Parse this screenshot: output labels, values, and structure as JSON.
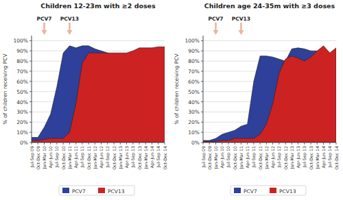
{
  "chart_data": [
    {
      "type": "area",
      "title": "Children 12-23m with ≥2 doses",
      "categories": [
        "Jul-Sep 09",
        "Oct-Dec 09",
        "Jan-Mar 10",
        "Apr-Jun 10",
        "Jul-Sep 10",
        "Oct-Dec 10",
        "Jan-Mar 11",
        "Apr-Jun 11",
        "Jul-Sep 11",
        "Oct-Dec 11",
        "Jan-Mar 12",
        "Apr-Jun 12",
        "Jul-Sep 12",
        "Oct-Dec 12",
        "Jan-Mar 13",
        "Apr-Jun 13",
        "Jul-Sep 13",
        "Oct-Dec 13",
        "Jan-Mar 14",
        "Apr-Jun 14",
        "Jul-Sep 14",
        "Oct-Dec 14"
      ],
      "series": [
        {
          "name": "PCV7",
          "color": "#2e4099",
          "values": [
            5,
            5,
            15,
            28,
            55,
            88,
            95,
            93,
            95,
            95,
            92,
            90,
            88,
            86,
            84,
            82,
            82,
            82,
            82,
            82,
            82,
            82
          ]
        },
        {
          "name": "PCV13",
          "color": "#cc2222",
          "values": [
            2,
            2,
            3,
            4,
            4,
            4,
            10,
            38,
            78,
            88,
            88,
            88,
            88,
            88,
            88,
            88,
            90,
            93,
            93,
            93,
            94,
            94
          ]
        }
      ],
      "y_label": "% of children receiving PCV",
      "ylim": [
        0,
        105
      ],
      "yticks": [
        {
          "value": 0,
          "label": "0%"
        },
        {
          "value": 10,
          "label": "10%"
        },
        {
          "value": 20,
          "label": "20%"
        },
        {
          "value": 30,
          "label": "30%"
        },
        {
          "value": 40,
          "label": "40%"
        },
        {
          "value": 50,
          "label": "50%"
        },
        {
          "value": 60,
          "label": "60%"
        },
        {
          "value": 70,
          "label": "70%"
        },
        {
          "value": 80,
          "label": "80%"
        },
        {
          "value": 90,
          "label": "90%"
        },
        {
          "value": 100,
          "label": "100%"
        }
      ],
      "annotations": [
        {
          "text": "PCV7",
          "x": "Jan-Mar 10",
          "color": "#e8b4a0"
        },
        {
          "text": "PCV13",
          "x": "Jan-Mar 11",
          "color": "#e8b4a0"
        }
      ],
      "grid": true,
      "legend": "bottom"
    },
    {
      "type": "area",
      "title": "Children age 24-35m with ≥3 doses",
      "categories": [
        "Jul-Sep 09",
        "Oct-Dec 09",
        "Jan-Mar 10",
        "Apr-Jun 10",
        "Jul-Sep 10",
        "Oct-Dec 10",
        "Jan-Mar 11",
        "Apr-Jun 11",
        "Jul-Sep 11",
        "Oct-Dec 11",
        "Jan-Mar 12",
        "Apr-Jun 12",
        "Jul-Sep 12",
        "Oct-Dec 12",
        "Jan-Mar 13",
        "Apr-Jun 13",
        "Jul-Sep 13",
        "Oct-Dec 13",
        "Jan-Mar 14",
        "Apr-Jun 14",
        "Jul-Sep 14",
        "Oct-Dec 14"
      ],
      "series": [
        {
          "name": "PCV7",
          "color": "#2e4099",
          "values": [
            2,
            2,
            4,
            8,
            10,
            12,
            16,
            18,
            60,
            85,
            85,
            84,
            82,
            80,
            92,
            93,
            92,
            90,
            90,
            88,
            88,
            88
          ]
        },
        {
          "name": "PCV13",
          "color": "#cc2222",
          "values": [
            1,
            1,
            1,
            2,
            2,
            4,
            4,
            4,
            4,
            8,
            18,
            38,
            68,
            82,
            85,
            83,
            80,
            84,
            90,
            95,
            88,
            93
          ]
        }
      ],
      "y_label": "% of children receiving PCV",
      "ylim": [
        0,
        105
      ],
      "yticks": [
        {
          "value": 0,
          "label": "0%"
        },
        {
          "value": 10,
          "label": "10%"
        },
        {
          "value": 20,
          "label": "20%"
        },
        {
          "value": 30,
          "label": "30%"
        },
        {
          "value": 40,
          "label": "40%"
        },
        {
          "value": 50,
          "label": "50%"
        },
        {
          "value": 60,
          "label": "60%"
        },
        {
          "value": 70,
          "label": "70%"
        },
        {
          "value": 80,
          "label": "80%"
        },
        {
          "value": 90,
          "label": "90%"
        },
        {
          "value": 100,
          "label": "100%"
        }
      ],
      "annotations": [
        {
          "text": "PCV7",
          "x": "Jan-Mar 10",
          "color": "#e8b4a0"
        },
        {
          "text": "PCV13",
          "x": "Jan-Mar 11",
          "color": "#e8b4a0"
        }
      ],
      "grid": true,
      "legend": "bottom"
    }
  ]
}
